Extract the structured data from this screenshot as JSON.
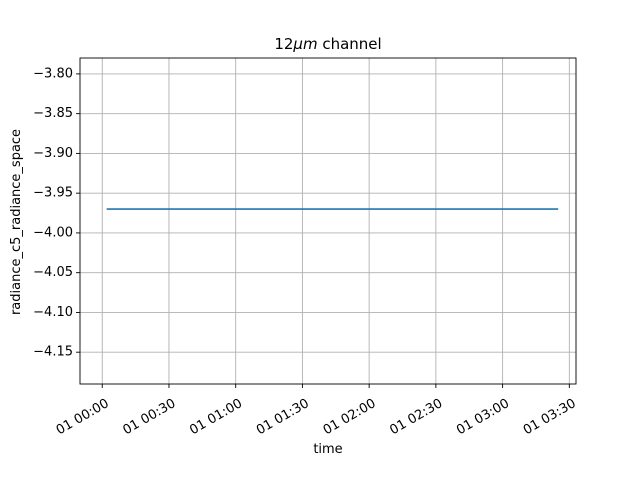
{
  "chart_data": {
    "type": "line",
    "title_prefix": "12",
    "title_unit": "μm",
    "title_suffix": " channel",
    "xlabel": "time",
    "ylabel": "radiance_c5_radiance_space",
    "x_ticks": [
      "01 00:00",
      "01 00:30",
      "01 01:00",
      "01 01:30",
      "01 02:00",
      "01 02:30",
      "01 03:00",
      "01 03:30"
    ],
    "x_tick_minutes": [
      0,
      30,
      60,
      90,
      120,
      150,
      180,
      210
    ],
    "xlim_minutes": [
      -10,
      213
    ],
    "y_ticks": [
      "−3.80",
      "−3.85",
      "−3.90",
      "−3.95",
      "−4.00",
      "−4.05",
      "−4.10",
      "−4.15"
    ],
    "y_tick_values": [
      -3.8,
      -3.85,
      -3.9,
      -3.95,
      -4.0,
      -4.05,
      -4.1,
      -4.15
    ],
    "ylim": [
      -4.19,
      -3.78
    ],
    "grid": true,
    "series": [
      {
        "x_minutes": [
          2,
          205
        ],
        "y": [
          -3.97,
          -3.97
        ],
        "color": "#1f77b4"
      }
    ]
  }
}
